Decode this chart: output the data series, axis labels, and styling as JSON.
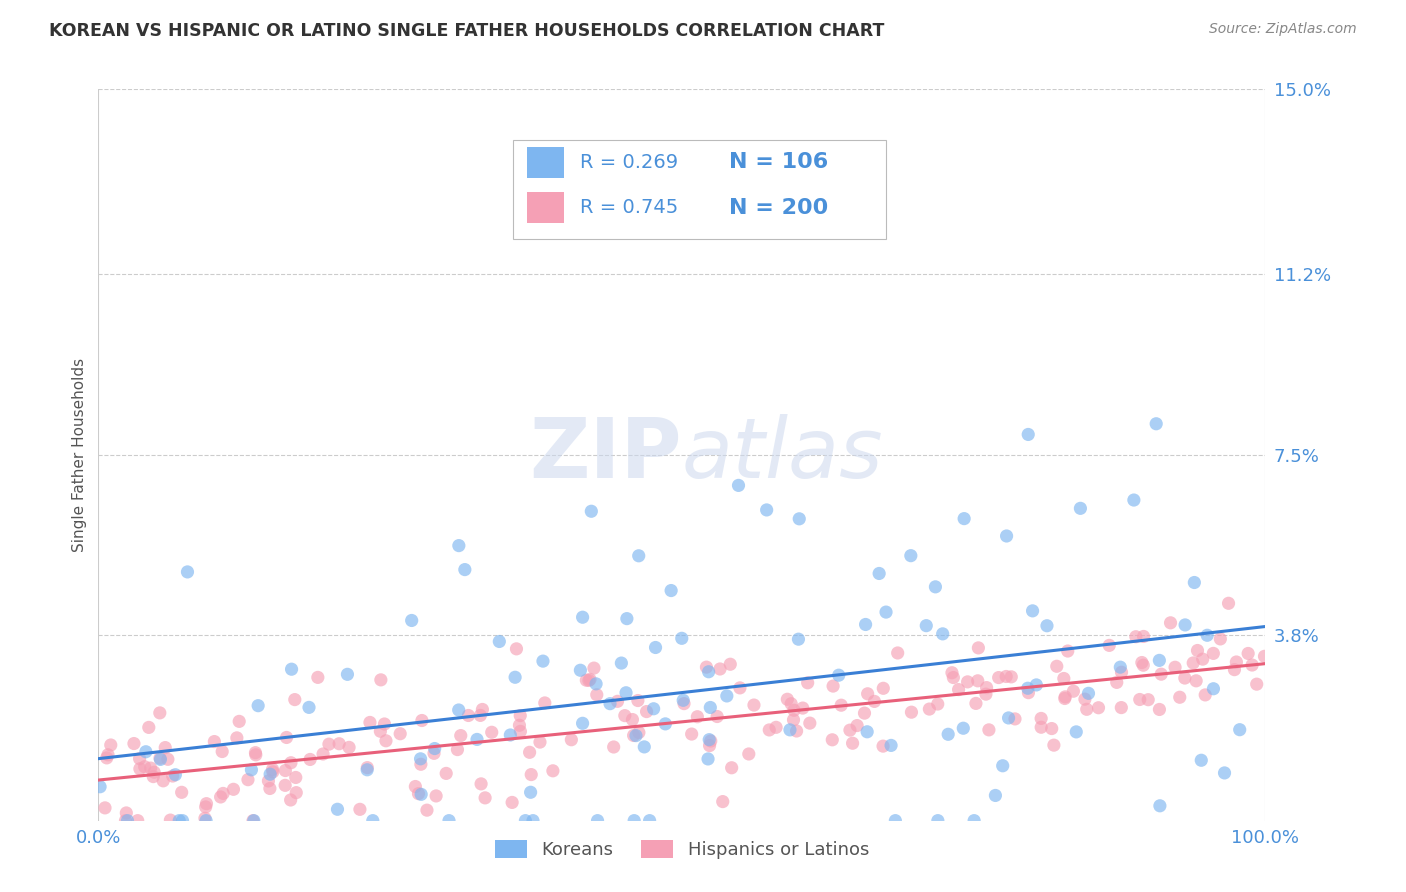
{
  "title": "KOREAN VS HISPANIC OR LATINO SINGLE FATHER HOUSEHOLDS CORRELATION CHART",
  "source": "Source: ZipAtlas.com",
  "ylabel": "Single Father Households",
  "xlim": [
    0.0,
    1.0
  ],
  "ylim": [
    0.0,
    0.15
  ],
  "ytick_vals": [
    0.038,
    0.075,
    0.112,
    0.15
  ],
  "ytick_labels": [
    "3.8%",
    "7.5%",
    "11.2%",
    "15.0%"
  ],
  "xtick_labels": [
    "0.0%",
    "100.0%"
  ],
  "legend_label_korean": "Koreans",
  "legend_label_hispanic": "Hispanics or Latinos",
  "korean_color": "#7eb6f0",
  "hispanic_color": "#f5a0b5",
  "korean_line_color": "#3a7fd5",
  "hispanic_line_color": "#e8607a",
  "watermark_zip": "ZIP",
  "watermark_atlas": "atlas",
  "background_color": "#ffffff",
  "title_color": "#333333",
  "axis_label_color": "#555555",
  "tick_label_color": "#4a90d9",
  "legend_R_color": "#4a90d9",
  "source_color": "#888888",
  "grid_color": "#cccccc",
  "korean_R": 0.269,
  "hispanic_R": 0.745,
  "korean_N": 106,
  "hispanic_N": 200,
  "korean_slope": 0.022,
  "korean_intercept": 0.018,
  "hispanic_slope": 0.016,
  "hispanic_intercept": 0.012
}
